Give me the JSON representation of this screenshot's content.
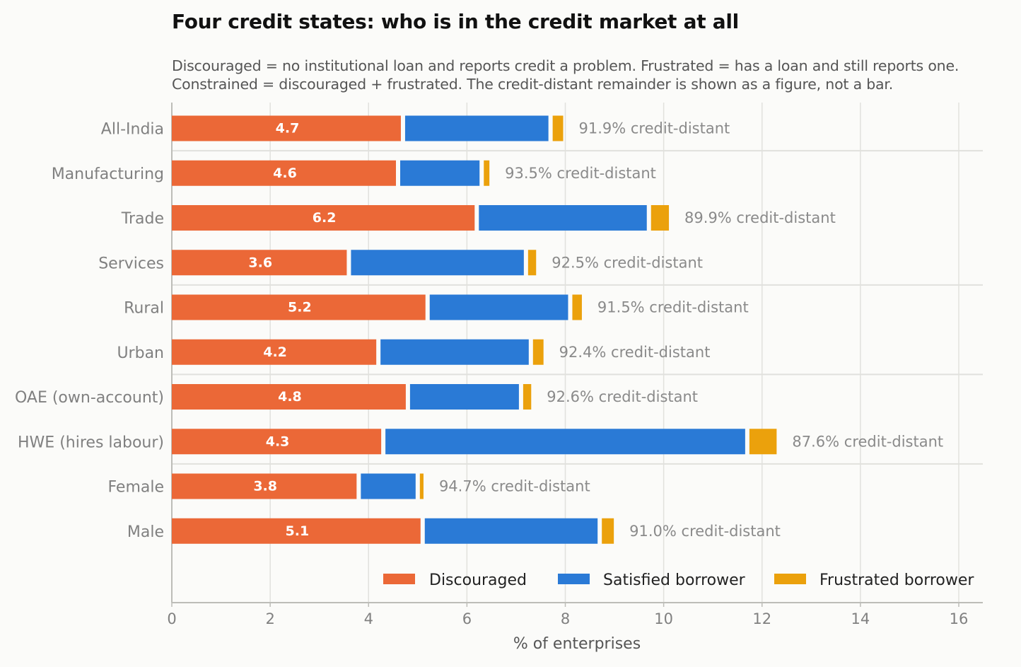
{
  "title": "Four credit states: who is in the credit market at all",
  "subtitle_lines": [
    "Discouraged = no institutional loan and reports credit a problem. Frustrated = has a loan and still reports one.",
    "Constrained = discouraged + frustrated. The credit-distant remainder is shown as a figure, not a bar."
  ],
  "colors": {
    "discouraged": "#eb6837",
    "satisfied": "#2a7ad6",
    "frustrated": "#eba10c",
    "grid": "#e1e1dd",
    "axis": "#bdbdb8",
    "tick_text": "#808080",
    "label_text": "#8a8a8a"
  },
  "chart_data": {
    "type": "bar",
    "orientation": "horizontal",
    "stacked": true,
    "categories": [
      "All-India",
      "Manufacturing",
      "Trade",
      "Services",
      "Rural",
      "Urban",
      "OAE (own-account)",
      "HWE (hires labour)",
      "Female",
      "Male"
    ],
    "series": [
      {
        "name": "Discouraged",
        "color": "#eb6837",
        "values": [
          4.7,
          4.6,
          6.2,
          3.6,
          5.2,
          4.2,
          4.8,
          4.3,
          3.8,
          5.1
        ]
      },
      {
        "name": "Satisfied borrower",
        "color": "#2a7ad6",
        "values": [
          3.0,
          1.7,
          3.5,
          3.6,
          2.9,
          3.1,
          2.3,
          7.4,
          1.2,
          3.6
        ]
      },
      {
        "name": "Frustrated borrower",
        "color": "#eba10c",
        "values": [
          0.3,
          0.2,
          0.45,
          0.25,
          0.28,
          0.3,
          0.25,
          0.64,
          0.16,
          0.33
        ]
      }
    ],
    "segment_labels": [
      "4.7",
      "4.6",
      "6.2",
      "3.6",
      "5.2",
      "4.2",
      "4.8",
      "4.3",
      "3.8",
      "5.1"
    ],
    "end_labels": [
      "91.9% credit-distant",
      "93.5% credit-distant",
      "89.9% credit-distant",
      "92.5% credit-distant",
      "91.5% credit-distant",
      "92.4% credit-distant",
      "92.6% credit-distant",
      "87.6% credit-distant",
      "94.7% credit-distant",
      "91.0% credit-distant"
    ],
    "xlabel": "% of enterprises",
    "xlim": [
      0,
      16.5
    ],
    "xticks": [
      0,
      2,
      4,
      6,
      8,
      10,
      12,
      14,
      16
    ],
    "xtick_labels": [
      "0",
      "2",
      "4",
      "6",
      "8",
      "10",
      "12",
      "14",
      "16"
    ],
    "group_separators_after": [
      "All-India",
      "Services",
      "Urban",
      "HWE (hires labour)"
    ],
    "grid": true,
    "legend_position": "bottom-right"
  }
}
